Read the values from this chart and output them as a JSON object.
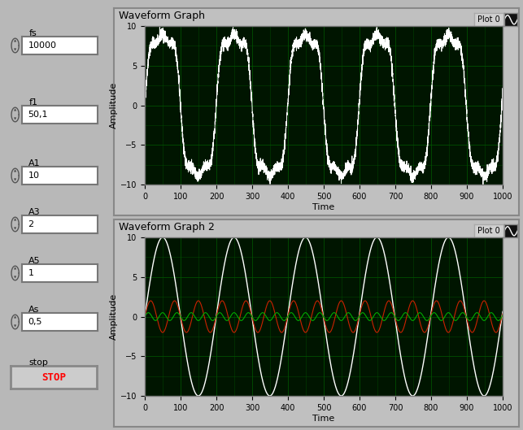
{
  "bg_color": "#b8b8b8",
  "graph_bg": "#001500",
  "grid_color": "#005500",
  "fs": 10000,
  "f1": 50.1,
  "A1": 10,
  "A3": 2,
  "A5": 1,
  "As": 0.5,
  "t_end": 1000,
  "title1": "Waveform Graph",
  "title2": "Waveform Graph 2",
  "ylabel": "Amplitude",
  "xlabel": "Time",
  "ylim": [
    -10,
    10
  ],
  "xlim": [
    0,
    1000
  ],
  "xticks": [
    0,
    100,
    200,
    300,
    400,
    500,
    600,
    700,
    800,
    900,
    1000
  ],
  "yticks": [
    -10,
    -5,
    0,
    5,
    10
  ],
  "white_color": "#ffffff",
  "red_color": "#cc2200",
  "green_color": "#00aa00",
  "noise_amplitude": 0.35,
  "controls": [
    {
      "label": "fs",
      "value": "10000"
    },
    {
      "label": "f1",
      "value": "50,1"
    },
    {
      "label": "A1",
      "value": "10"
    },
    {
      "label": "A3",
      "value": "2"
    },
    {
      "label": "A5",
      "value": "1"
    },
    {
      "label": "As",
      "value": "0,5"
    }
  ],
  "panel_frame_color": "#999999",
  "graph_frame_color": "#aaaaaa",
  "plot0_bg": "#c8c8c8",
  "plot0_icon_bg": "#111111"
}
